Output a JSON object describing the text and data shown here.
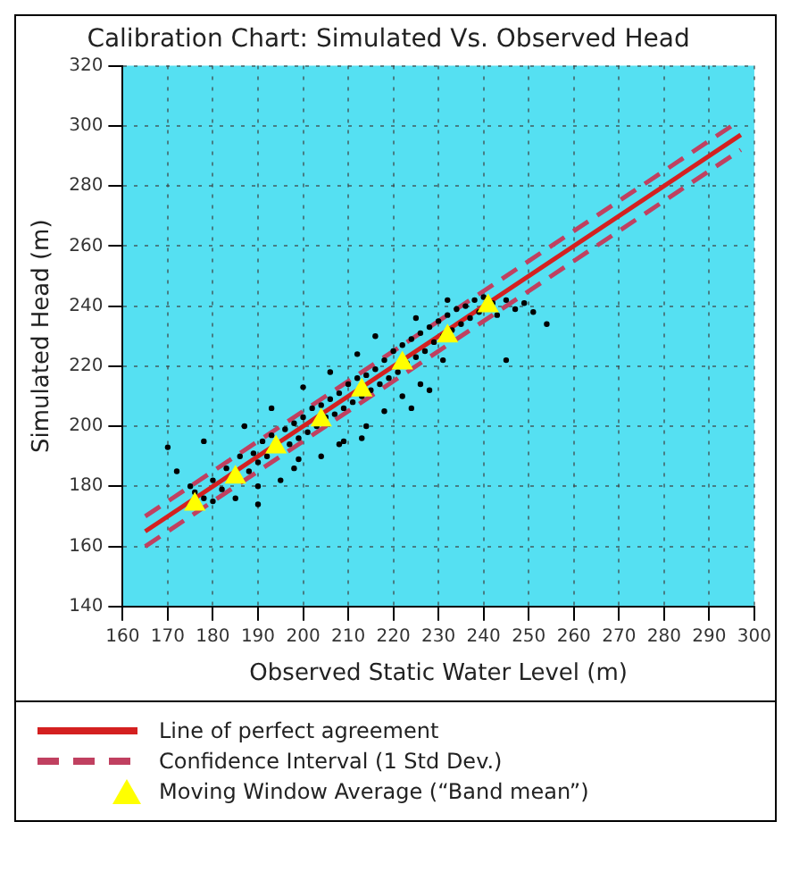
{
  "chart_data": {
    "type": "scatter",
    "title": "Calibration Chart: Simulated Vs. Observed Head",
    "xlabel": "Observed Static Water Level (m)",
    "ylabel": "Simulated Head (m)",
    "xlim": [
      160,
      300
    ],
    "xticks": [
      160,
      170,
      180,
      190,
      200,
      210,
      220,
      230,
      240,
      250,
      260,
      270,
      280,
      290,
      300
    ],
    "ylim": [
      140,
      320
    ],
    "yticks": [
      140,
      160,
      180,
      200,
      220,
      240,
      260,
      280,
      300,
      320
    ],
    "grid": true,
    "legend": "bottom",
    "series": [
      {
        "color": "#000000",
        "marker": "circle",
        "x": [
          176,
          175,
          178,
          180,
          182,
          183,
          186,
          188,
          189,
          190,
          191,
          192,
          193,
          196,
          197,
          198,
          199,
          200,
          201,
          202,
          203,
          204,
          205,
          206,
          207,
          208,
          209,
          210,
          211,
          212,
          213,
          214,
          215,
          216,
          217,
          218,
          219,
          220,
          221,
          222,
          223,
          224,
          225,
          226,
          227,
          228,
          229,
          230,
          231,
          232,
          233,
          234,
          235,
          236,
          237,
          238,
          239,
          240,
          242,
          243,
          245,
          247,
          249,
          251,
          228,
          226,
          224,
          218,
          214,
          209,
          204,
          198,
          195,
          190,
          185,
          180,
          172,
          170,
          178,
          187,
          193,
          200,
          206,
          212,
          216,
          225,
          232,
          199,
          208,
          231,
          245,
          254,
          222,
          213,
          190
        ],
        "values": [
          178,
          180,
          176,
          182,
          179,
          186,
          190,
          185,
          191,
          188,
          195,
          190,
          197,
          199,
          194,
          201,
          196,
          203,
          198,
          206,
          200,
          207,
          203,
          209,
          204,
          211,
          206,
          214,
          208,
          216,
          210,
          217,
          212,
          219,
          214,
          222,
          216,
          225,
          218,
          227,
          221,
          229,
          223,
          231,
          225,
          233,
          228,
          235,
          230,
          237,
          232,
          239,
          234,
          240,
          236,
          242,
          238,
          243,
          241,
          237,
          242,
          239,
          241,
          238,
          212,
          214,
          206,
          205,
          200,
          195,
          190,
          186,
          182,
          180,
          176,
          175,
          185,
          193,
          195,
          200,
          206,
          213,
          218,
          224,
          230,
          236,
          242,
          189,
          194,
          222,
          222,
          234,
          210,
          196,
          174
        ]
      },
      {
        "name": "Line of perfect agreement",
        "color": "#d42020",
        "type": "line",
        "line_style": "solid",
        "marker": "none",
        "x": [
          165,
          297
        ],
        "values": [
          165,
          297
        ]
      },
      {
        "name": "Confidence Interval (1 Std Dev.)",
        "color": "#c04060",
        "type": "line",
        "line_style": "dashed",
        "marker": "none",
        "x": [
          165,
          296
        ],
        "values": [
          170,
          301
        ]
      },
      {
        "color": "#c04060",
        "type": "line",
        "line_style": "dashed",
        "marker": "none",
        "x": [
          165,
          297
        ],
        "values": [
          160,
          292
        ]
      },
      {
        "name": "Moving Window Average (“Band mean”)",
        "color": "#ffff00",
        "marker": "triangle",
        "x": [
          176,
          185,
          194,
          204,
          213,
          222,
          232,
          241
        ],
        "values": [
          174,
          183,
          193,
          202,
          212,
          221,
          230,
          240
        ]
      }
    ]
  }
}
